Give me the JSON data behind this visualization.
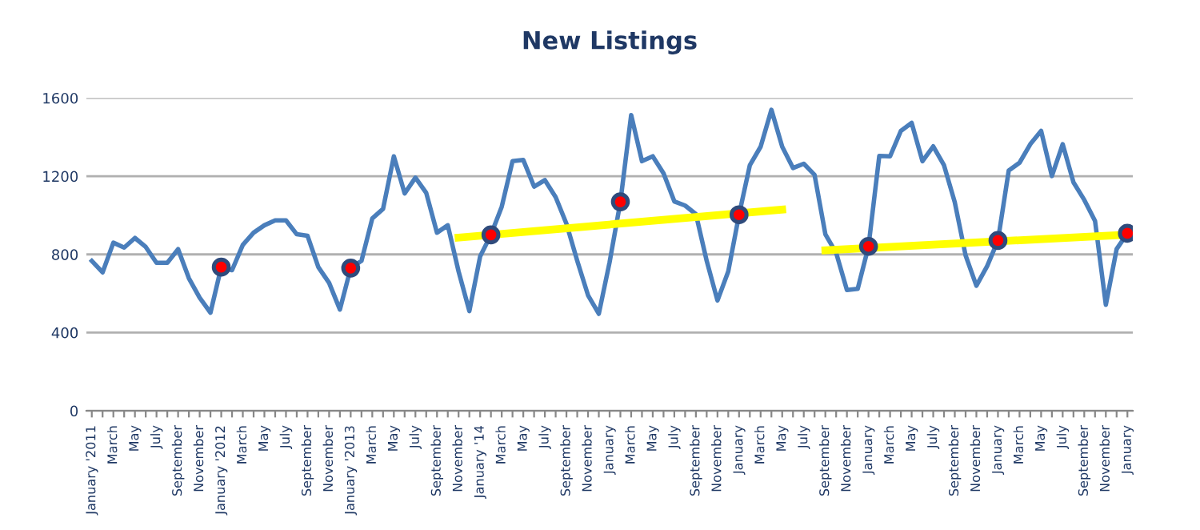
{
  "chart_data": {
    "type": "line",
    "title": "New Listings",
    "categories": [
      "January '2011",
      null,
      "March",
      null,
      "May",
      null,
      "July",
      null,
      "September",
      null,
      "November",
      null,
      "January '2012",
      null,
      "March",
      null,
      "May",
      null,
      "July",
      null,
      "September",
      null,
      "November",
      null,
      "January '2013",
      null,
      "March",
      null,
      "May",
      null,
      "July",
      null,
      "September",
      null,
      "November",
      null,
      "January '14",
      null,
      "March",
      null,
      "May",
      null,
      "July",
      null,
      "September",
      null,
      "November",
      null,
      "January",
      null,
      "March",
      null,
      "May",
      null,
      "July",
      null,
      "September",
      null,
      "November",
      null,
      "January",
      null,
      "March",
      null,
      "May",
      null,
      "July",
      null,
      "September",
      null,
      "November",
      null,
      "January",
      null,
      "March",
      null,
      "May",
      null,
      "July",
      null,
      "September",
      null,
      "November",
      null,
      "January",
      null,
      "March",
      null,
      "May",
      null,
      "July",
      null,
      "September",
      null,
      "November",
      null,
      "January"
    ],
    "series": [
      {
        "color": "#4a7ebb",
        "values": [
          767,
          708,
          860,
          835,
          884,
          838,
          757,
          757,
          827,
          678,
          578,
          502,
          735,
          719,
          849,
          911,
          949,
          974,
          974,
          903,
          895,
          735,
          654,
          518,
          730,
          767,
          984,
          1033,
          1302,
          1112,
          1193,
          1115,
          911,
          949,
          713,
          510,
          790,
          900,
          1044,
          1277,
          1283,
          1147,
          1180,
          1093,
          957,
          767,
          591,
          496,
          760,
          1069,
          1513,
          1277,
          1302,
          1215,
          1071,
          1050,
          1006,
          767,
          564,
          713,
          1003,
          1256,
          1351,
          1540,
          1351,
          1242,
          1264,
          1207,
          903,
          808,
          618,
          624,
          841,
          1304,
          1302,
          1432,
          1473,
          1277,
          1353,
          1256,
          1066,
          795,
          640,
          740,
          871,
          1229,
          1269,
          1364,
          1432,
          1201,
          1364,
          1169,
          1079,
          971,
          542,
          827,
          908
        ]
      },
      {
        "type": "line",
        "color": "#ffff00",
        "values": [
          null,
          null,
          null,
          null,
          null,
          null,
          null,
          null,
          null,
          null,
          null,
          null,
          null,
          null,
          null,
          null,
          null,
          null,
          null,
          null,
          null,
          null,
          null,
          null,
          null,
          null,
          null,
          null,
          null,
          null,
          null,
          null,
          null,
          null,
          886,
          null,
          null,
          null,
          null,
          null,
          null,
          null,
          null,
          null,
          null,
          null,
          null,
          null,
          null,
          null,
          null,
          null,
          null,
          null,
          null,
          null,
          null,
          null,
          null,
          null,
          null,
          null,
          null,
          null,
          1029,
          null,
          null,
          null,
          null,
          null,
          null,
          null,
          null,
          null,
          null,
          null,
          null,
          null,
          null,
          null,
          null,
          null,
          null,
          null,
          null,
          null,
          null,
          null,
          null,
          null,
          null,
          null,
          null,
          null,
          null,
          null,
          null
        ]
      },
      {
        "type": "line",
        "color": "#ffff00",
        "values": [
          null,
          null,
          null,
          null,
          null,
          null,
          null,
          null,
          null,
          null,
          null,
          null,
          null,
          null,
          null,
          null,
          null,
          null,
          null,
          null,
          null,
          null,
          null,
          null,
          null,
          null,
          null,
          null,
          null,
          null,
          null,
          null,
          null,
          null,
          null,
          null,
          null,
          null,
          null,
          null,
          null,
          null,
          null,
          null,
          null,
          null,
          null,
          null,
          null,
          null,
          null,
          null,
          null,
          null,
          null,
          null,
          null,
          null,
          null,
          null,
          null,
          null,
          null,
          null,
          null,
          null,
          null,
          null,
          821,
          null,
          null,
          null,
          null,
          null,
          null,
          null,
          null,
          null,
          null,
          null,
          null,
          null,
          null,
          null,
          null,
          null,
          null,
          null,
          null,
          null,
          null,
          null,
          null,
          null,
          null,
          null,
          901
        ]
      },
      {
        "type": "scatter",
        "color": "#ff0000",
        "values": [
          null,
          null,
          null,
          null,
          null,
          null,
          null,
          null,
          null,
          null,
          null,
          null,
          735,
          null,
          null,
          null,
          null,
          null,
          null,
          null,
          null,
          null,
          null,
          null,
          730,
          null,
          null,
          null,
          null,
          null,
          null,
          null,
          null,
          null,
          null,
          null,
          null,
          900,
          null,
          null,
          null,
          null,
          null,
          null,
          null,
          null,
          null,
          null,
          null,
          1069,
          null,
          null,
          null,
          null,
          null,
          null,
          null,
          null,
          null,
          null,
          1003,
          null,
          null,
          null,
          null,
          null,
          null,
          null,
          null,
          null,
          null,
          null,
          841,
          null,
          null,
          null,
          null,
          null,
          null,
          null,
          null,
          null,
          null,
          null,
          871,
          null,
          null,
          null,
          null,
          null,
          null,
          null,
          null,
          null,
          null,
          null,
          908
        ]
      }
    ],
    "ylim": [
      0,
      1600
    ],
    "yticks": [
      0,
      400,
      800,
      1200,
      1600
    ],
    "grid": "y",
    "legend": false
  }
}
